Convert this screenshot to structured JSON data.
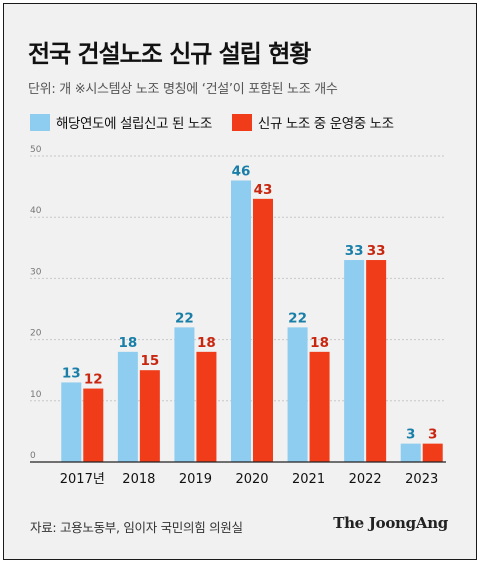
{
  "title": "전국 건설노조 신규 설립 현황",
  "subtitle": "단위: 개   ※시스템상 노조 명칭에 ‘건설’이 포함된 노조 개수",
  "source": "자료: 고용노동부, 임이자 국민의힘 의원실",
  "logo": "The JoongAng",
  "colors": {
    "series1": "#8ecdf0",
    "series2": "#f03c19",
    "label1": "#1a7fa8",
    "label2": "#c8260f",
    "background": "#f1f1f1"
  },
  "chart_data": {
    "type": "bar",
    "categories": [
      "2017년",
      "2018",
      "2019",
      "2020",
      "2021",
      "2022",
      "2023"
    ],
    "series": [
      {
        "name": "해당연도에 설립신고 된 노조",
        "values": [
          13,
          18,
          22,
          46,
          22,
          33,
          3
        ]
      },
      {
        "name": "신규 노조 중 운영중 노조",
        "values": [
          12,
          15,
          18,
          43,
          18,
          33,
          3
        ]
      }
    ],
    "yticks": [
      0,
      10,
      20,
      30,
      40,
      50
    ],
    "ylim": [
      0,
      50
    ],
    "grid": true,
    "legend": "top-left"
  }
}
